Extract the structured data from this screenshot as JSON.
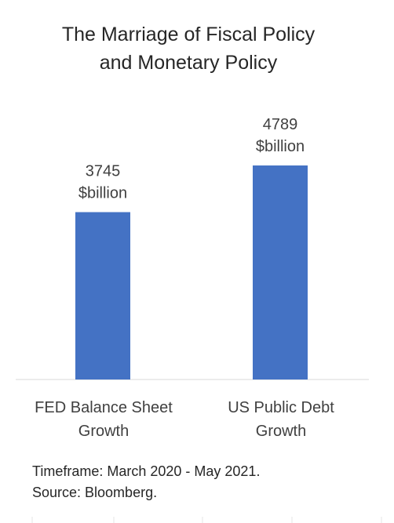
{
  "chart_data": {
    "type": "bar",
    "title_lines": [
      "The Marriage of Fiscal Policy",
      "and Monetary Policy"
    ],
    "categories": [
      [
        "FED Balance Sheet",
        "Growth"
      ],
      [
        "US Public Debt",
        "Growth"
      ]
    ],
    "values": [
      3745,
      4789
    ],
    "data_labels": [
      [
        "3745",
        "$billion"
      ],
      [
        "4789",
        "$billion"
      ]
    ],
    "ylim": [
      0,
      6000
    ],
    "bar_color": "#4472C4",
    "axis_color": "#D9D9D9",
    "grid": false,
    "legend": "none",
    "footnotes": [
      "Timeframe:  March 2020 - May 2021.",
      "Source: Bloomberg."
    ]
  }
}
